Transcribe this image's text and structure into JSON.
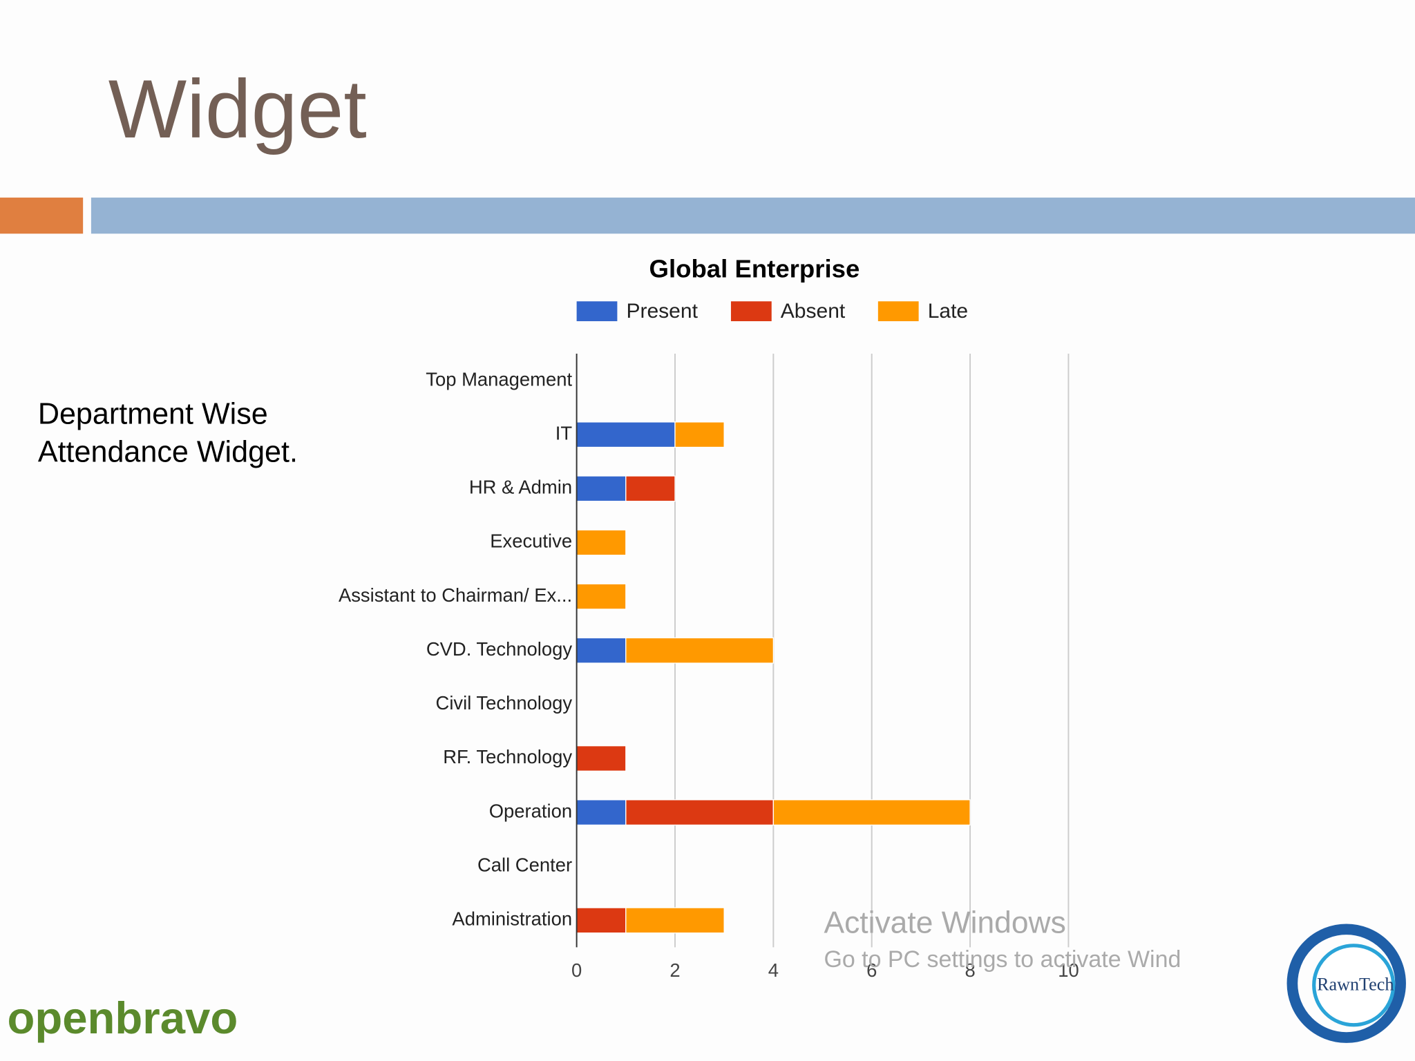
{
  "slide": {
    "title": "Widget",
    "description": [
      "Department Wise",
      "Attendance  Widget."
    ],
    "watermark": [
      "Activate Windows",
      "Go to PC settings to activate Wind"
    ],
    "logos": [
      "openbravo",
      "RawnTech"
    ]
  },
  "chart_data": {
    "type": "stacked-hbar",
    "title": "Global Enterprise",
    "categories": [
      "Top Management",
      "IT",
      "HR & Admin",
      "Executive",
      "Assistant to Chairman/ Ex...",
      "CVD. Technology",
      "Civil Technology",
      "RF. Technology",
      "Operation",
      "Call Center",
      "Administration"
    ],
    "series": [
      {
        "name": "Present",
        "color": "#3366cc",
        "values": [
          0,
          2,
          1,
          0,
          0,
          1,
          0,
          0,
          1,
          0,
          0
        ]
      },
      {
        "name": "Absent",
        "color": "#dc3912",
        "values": [
          0,
          0,
          1,
          0,
          0,
          0,
          0,
          1,
          3,
          0,
          1
        ]
      },
      {
        "name": "Late",
        "color": "#ff9900",
        "values": [
          0,
          1,
          0,
          1,
          1,
          3,
          0,
          0,
          4,
          0,
          2
        ]
      }
    ],
    "xlim": [
      0,
      10
    ],
    "xticks": [
      0,
      2,
      4,
      6,
      8,
      10
    ],
    "grid": true,
    "legend": "top"
  }
}
